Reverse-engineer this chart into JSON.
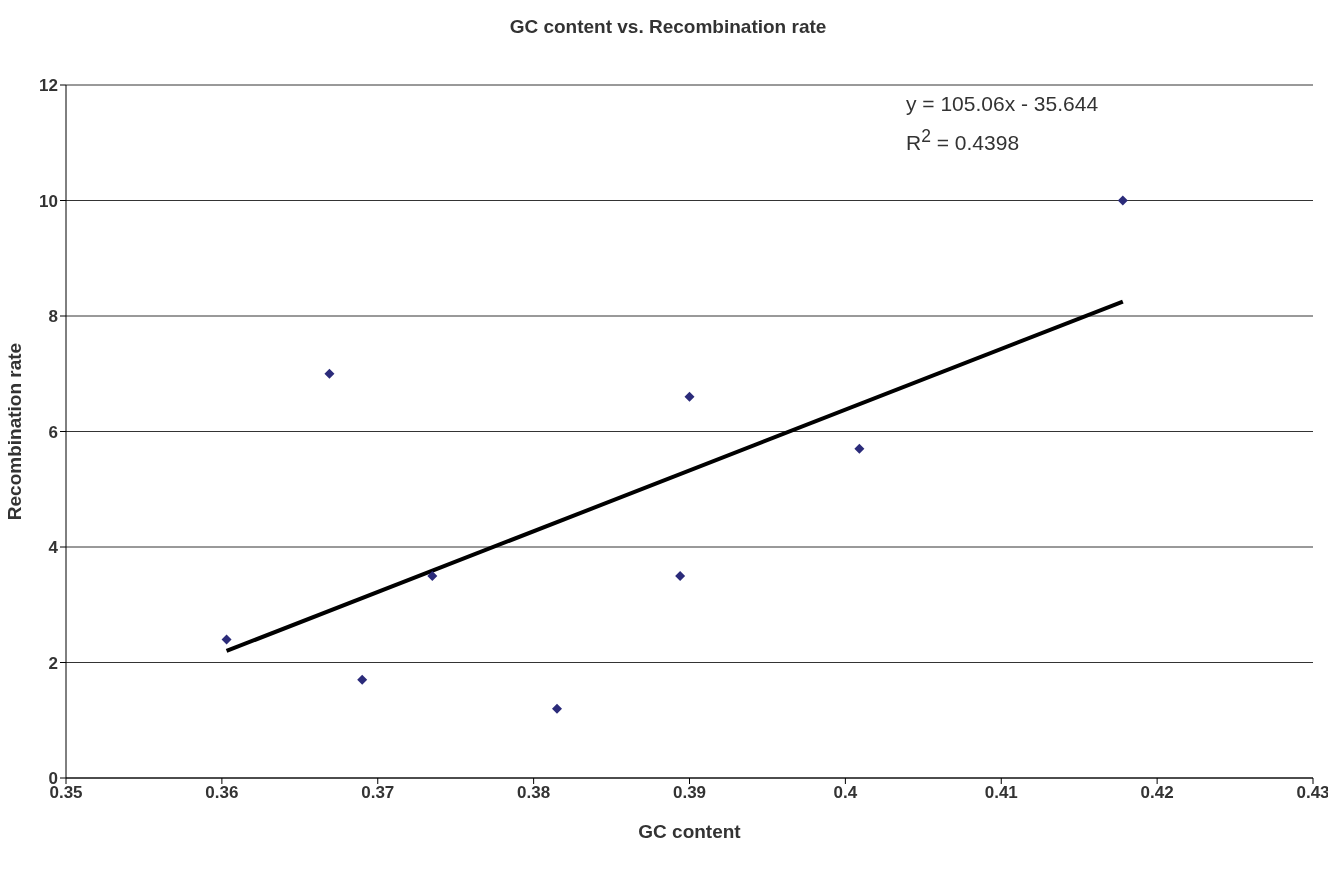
{
  "chart_data": {
    "type": "scatter",
    "title": "GC content vs. Recombination rate",
    "xlabel": "GC content",
    "ylabel": "Recombination rate",
    "annotations": [
      "y = 105.06x - 35.644",
      "R$^{2}$ = 0.4398"
    ],
    "xlim": [
      0.35,
      0.43
    ],
    "xticks": [
      0.35,
      0.36,
      0.37,
      0.38,
      0.39,
      0.4,
      0.41,
      0.42,
      0.43
    ],
    "ylim": [
      0,
      12
    ],
    "yticks": [
      0,
      2,
      4,
      6,
      8,
      10,
      12
    ],
    "grid": "y",
    "series": [
      {
        "marker": "diamond",
        "color": "#2b2b7a",
        "x": [
          0.3603,
          0.3669,
          0.369,
          0.3735,
          0.3815,
          0.3894,
          0.39,
          0.4009,
          0.4178
        ],
        "values": [
          2.4,
          7.0,
          1.7,
          3.5,
          1.2,
          3.5,
          6.6,
          5.7,
          10.0
        ]
      },
      {
        "type": "line",
        "marker": "none",
        "color": "#000000",
        "x": [
          0.3603,
          0.4178
        ],
        "values": [
          2.2,
          8.25
        ]
      }
    ]
  }
}
